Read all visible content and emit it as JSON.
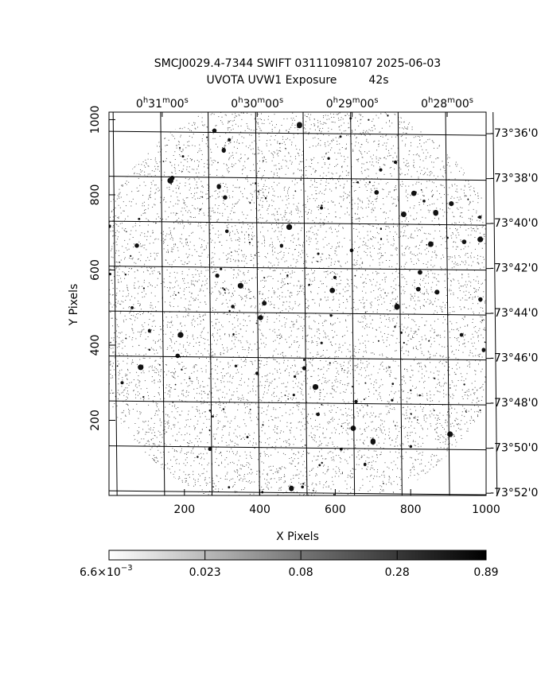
{
  "chart_data": {
    "type": "image",
    "title": "SMCJ0029.4-7344 SWIFT 03111098107 2025-06-03",
    "subtitle": "UVOTA UVW1 Exposure         42s",
    "x_label": "X Pixels",
    "y_label": "Y Pixels",
    "xlim": [
      0,
      1000
    ],
    "ylim": [
      0,
      1020
    ],
    "xticks": [
      200,
      400,
      600,
      800,
      1000
    ],
    "yticks": [
      200,
      400,
      600,
      800,
      1000
    ],
    "x2lim": [
      31.56,
      27.59
    ],
    "x2ticks": [
      {
        "value": 31,
        "label": "0h31m00s"
      },
      {
        "value": 30,
        "label": "0h30m00s"
      },
      {
        "value": 29,
        "label": "0h29m00s"
      },
      {
        "value": 28,
        "label": "0h28m00s"
      }
    ],
    "y2lim": [
      -4432.1,
      -4415.04
    ],
    "y2ticks": [
      {
        "value": -4416,
        "label": "-73°36'0"
      },
      {
        "value": -4418,
        "label": "-73°38'0"
      },
      {
        "value": -4420,
        "label": "-73°40'0"
      },
      {
        "value": -4422,
        "label": "-73°42'0"
      },
      {
        "value": -4424,
        "label": "-73°44'0"
      },
      {
        "value": -4426,
        "label": "-73°46'0"
      },
      {
        "value": -4428,
        "label": "-73°48'0"
      },
      {
        "value": -4430,
        "label": "-73°50'0"
      },
      {
        "value": -4432,
        "label": "-73°52'0"
      }
    ],
    "colorbar": {
      "log": true,
      "clim": [
        0.0066,
        0.89
      ],
      "ticks": [
        {
          "value": 0.0066,
          "label": "6.6×10−3"
        },
        {
          "value": 0.023,
          "label": "0.023"
        },
        {
          "value": 0.08,
          "label": "0.08"
        },
        {
          "value": 0.28,
          "label": "0.28"
        },
        {
          "value": 0.89,
          "label": "0.89"
        }
      ]
    },
    "grid": true
  }
}
